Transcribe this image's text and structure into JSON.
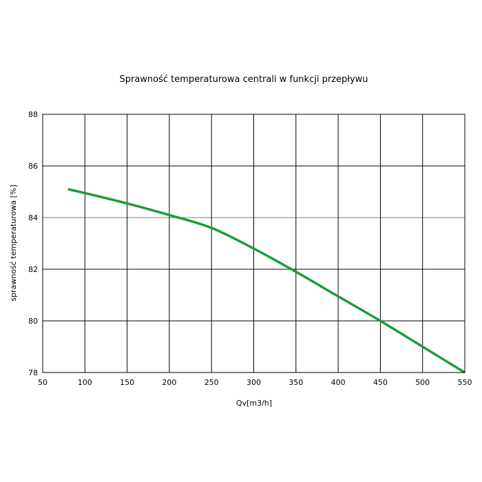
{
  "chart_data": {
    "type": "line",
    "title": "Sprawność temperaturowa centrali w funkcji przepływu",
    "xlabel": "Qv[m3/h]",
    "ylabel": "sprawność temperaturowa [%]",
    "xlim": [
      50,
      550
    ],
    "ylim": [
      78,
      88
    ],
    "x_ticks": [
      "50",
      "100",
      "150",
      "200",
      "250",
      "300",
      "350",
      "400",
      "450",
      "500",
      "550"
    ],
    "y_ticks": [
      "78",
      "80",
      "82",
      "84",
      "86",
      "88"
    ],
    "grid": true,
    "legend": "none",
    "series": [
      {
        "color": "#1e9a3c",
        "x": [
          80,
          100,
          150,
          200,
          250,
          300,
          350,
          400,
          450,
          500,
          550
        ],
        "y": [
          85.1,
          84.95,
          84.55,
          84.1,
          83.6,
          82.8,
          81.9,
          80.95,
          80.0,
          79.0,
          78.0
        ]
      }
    ]
  }
}
